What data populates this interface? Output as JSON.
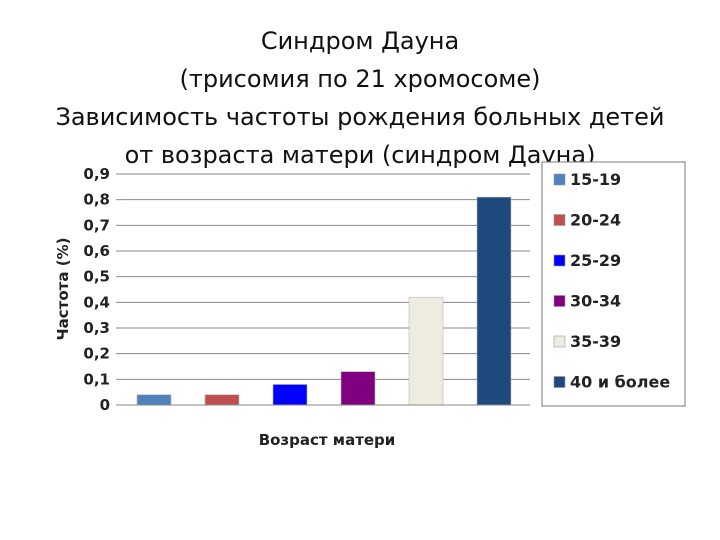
{
  "title_lines": [
    "Синдром Дауна",
    "(трисомия по 21 хромосоме)",
    "Зависимость частоты рождения больных детей",
    "от возраста матери (синдром Дауна)"
  ],
  "chart_data": {
    "type": "bar",
    "categories": [
      "15-19",
      "20-24",
      "25-29",
      "30-34",
      "35-39",
      "40 и более"
    ],
    "series": [
      {
        "values": [
          0.04,
          0.04,
          0.08,
          0.13,
          0.42,
          0.81
        ],
        "colors": [
          "#4f81bd",
          "#c0504d",
          "#0000ff",
          "#800080",
          "#eeece1",
          "#1f497d"
        ]
      }
    ],
    "xlabel": "Возраст матери",
    "ylabel": "Частота (%)",
    "ylim": [
      0,
      0.9
    ],
    "yticks": [
      "0",
      "0,1",
      "0,2",
      "0,3",
      "0,4",
      "0,5",
      "0,6",
      "0,7",
      "0,8",
      "0,9"
    ],
    "grid": true,
    "legend": {
      "placement": "right",
      "entries": [
        "15-19",
        "20-24",
        "25-29",
        "30-34",
        "35-39",
        "40 и более"
      ]
    }
  }
}
